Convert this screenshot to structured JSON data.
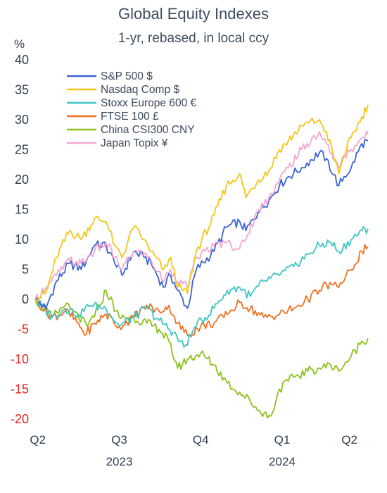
{
  "chart_data": {
    "type": "line",
    "title": "Global Equity Indexes",
    "subtitle": "1-yr, rebased, in local ccy",
    "ylabel": "%",
    "ylim": [
      -20,
      40
    ],
    "yticks": [
      40,
      35,
      30,
      25,
      20,
      15,
      10,
      5,
      0,
      -5,
      -10,
      -15,
      -20
    ],
    "grid": false,
    "legend_position": "top-left",
    "x_range": [
      "2023-05-12",
      "2024-05-22"
    ],
    "x_tick_labels": [
      {
        "label": "Q2",
        "date": "2023-05-15"
      },
      {
        "label": "Q3",
        "date": "2023-08-15"
      },
      {
        "label": "Q4",
        "date": "2023-11-15"
      },
      {
        "label": "Q1",
        "date": "2024-02-15"
      },
      {
        "label": "Q2",
        "date": "2024-05-01"
      }
    ],
    "x_year_labels": [
      {
        "label": "2023",
        "date": "2023-08-15"
      },
      {
        "label": "2024",
        "date": "2024-02-15"
      }
    ],
    "series": [
      {
        "name": "S&P 500 $",
        "color": "#3a63d6",
        "points": [
          [
            "2023-05-12",
            0
          ],
          [
            "2023-05-24",
            -1.5
          ],
          [
            "2023-06-05",
            3
          ],
          [
            "2023-06-20",
            6
          ],
          [
            "2023-07-03",
            5
          ],
          [
            "2023-07-18",
            9
          ],
          [
            "2023-07-31",
            9
          ],
          [
            "2023-08-10",
            6
          ],
          [
            "2023-08-18",
            4
          ],
          [
            "2023-08-31",
            8
          ],
          [
            "2023-09-12",
            7
          ],
          [
            "2023-09-20",
            6
          ],
          [
            "2023-10-04",
            2
          ],
          [
            "2023-10-12",
            4
          ],
          [
            "2023-10-20",
            1.5
          ],
          [
            "2023-10-31",
            -1.5
          ],
          [
            "2023-11-10",
            5
          ],
          [
            "2023-11-30",
            8
          ],
          [
            "2023-12-14",
            12
          ],
          [
            "2023-12-29",
            13
          ],
          [
            "2024-01-05",
            11.5
          ],
          [
            "2024-01-19",
            14.5
          ],
          [
            "2024-01-31",
            16.5
          ],
          [
            "2024-02-12",
            19
          ],
          [
            "2024-02-22",
            20.5
          ],
          [
            "2024-03-08",
            22
          ],
          [
            "2024-03-28",
            24.5
          ],
          [
            "2024-04-05",
            23.5
          ],
          [
            "2024-04-19",
            19
          ],
          [
            "2024-04-25",
            20.5
          ],
          [
            "2024-05-03",
            22
          ],
          [
            "2024-05-15",
            26
          ],
          [
            "2024-05-22",
            26.5
          ]
        ]
      },
      {
        "name": "Nasdaq Comp $",
        "color": "#f5c518",
        "points": [
          [
            "2023-05-12",
            0
          ],
          [
            "2023-05-24",
            1
          ],
          [
            "2023-06-05",
            7
          ],
          [
            "2023-06-20",
            11.5
          ],
          [
            "2023-07-03",
            10
          ],
          [
            "2023-07-18",
            13.5
          ],
          [
            "2023-07-31",
            13
          ],
          [
            "2023-08-10",
            9
          ],
          [
            "2023-08-18",
            7
          ],
          [
            "2023-08-31",
            12
          ],
          [
            "2023-09-12",
            10
          ],
          [
            "2023-09-20",
            8
          ],
          [
            "2023-10-04",
            5
          ],
          [
            "2023-10-12",
            7
          ],
          [
            "2023-10-20",
            2
          ],
          [
            "2023-10-31",
            1
          ],
          [
            "2023-11-10",
            8
          ],
          [
            "2023-11-30",
            14
          ],
          [
            "2023-12-14",
            19
          ],
          [
            "2023-12-29",
            21
          ],
          [
            "2024-01-05",
            17
          ],
          [
            "2024-01-19",
            20
          ],
          [
            "2024-01-31",
            21.5
          ],
          [
            "2024-02-12",
            25
          ],
          [
            "2024-02-22",
            26.5
          ],
          [
            "2024-03-08",
            29
          ],
          [
            "2024-03-28",
            30
          ],
          [
            "2024-04-05",
            28
          ],
          [
            "2024-04-19",
            21
          ],
          [
            "2024-04-25",
            24
          ],
          [
            "2024-05-03",
            27
          ],
          [
            "2024-05-15",
            30.5
          ],
          [
            "2024-05-22",
            32.5
          ]
        ]
      },
      {
        "name": "Stoxx Europe 600  €",
        "color": "#3ec6c2",
        "points": [
          [
            "2023-05-12",
            0
          ],
          [
            "2023-05-31",
            -3
          ],
          [
            "2023-06-15",
            -1.5
          ],
          [
            "2023-06-30",
            -2.5
          ],
          [
            "2023-07-14",
            -1
          ],
          [
            "2023-07-31",
            -1.5
          ],
          [
            "2023-08-15",
            -4.5
          ],
          [
            "2023-08-31",
            -3
          ],
          [
            "2023-09-15",
            -1.5
          ],
          [
            "2023-09-29",
            -3.5
          ],
          [
            "2023-10-15",
            -5.5
          ],
          [
            "2023-10-27",
            -8
          ],
          [
            "2023-11-10",
            -4.5
          ],
          [
            "2023-11-30",
            -1.5
          ],
          [
            "2023-12-15",
            1.5
          ],
          [
            "2023-12-29",
            2
          ],
          [
            "2024-01-10",
            0.5
          ],
          [
            "2024-01-25",
            3
          ],
          [
            "2024-02-12",
            4
          ],
          [
            "2024-02-28",
            5.5
          ],
          [
            "2024-03-15",
            7.5
          ],
          [
            "2024-03-28",
            9
          ],
          [
            "2024-04-10",
            9.5
          ],
          [
            "2024-04-19",
            8
          ],
          [
            "2024-05-03",
            10
          ],
          [
            "2024-05-15",
            11.5
          ],
          [
            "2024-05-22",
            11.8
          ]
        ]
      },
      {
        "name": "FTSE 100  £",
        "color": "#f07020",
        "points": [
          [
            "2023-05-12",
            0
          ],
          [
            "2023-05-31",
            -3
          ],
          [
            "2023-06-15",
            -2
          ],
          [
            "2023-06-30",
            -4
          ],
          [
            "2023-07-07",
            -6
          ],
          [
            "2023-07-18",
            -4
          ],
          [
            "2023-07-31",
            -2.5
          ],
          [
            "2023-08-15",
            -4.5
          ],
          [
            "2023-08-31",
            -3
          ],
          [
            "2023-09-15",
            -1
          ],
          [
            "2023-09-29",
            -2
          ],
          [
            "2023-10-10",
            -1
          ],
          [
            "2023-10-20",
            -4
          ],
          [
            "2023-10-31",
            -6
          ],
          [
            "2023-11-15",
            -4.5
          ],
          [
            "2023-11-30",
            -4
          ],
          [
            "2023-12-15",
            -2.5
          ],
          [
            "2023-12-29",
            -0.5
          ],
          [
            "2024-01-10",
            -1.5
          ],
          [
            "2024-01-25",
            -3
          ],
          [
            "2024-02-12",
            -2.5
          ],
          [
            "2024-02-28",
            -1.5
          ],
          [
            "2024-03-15",
            0
          ],
          [
            "2024-03-28",
            1.5
          ],
          [
            "2024-04-05",
            2.5
          ],
          [
            "2024-04-19",
            2
          ],
          [
            "2024-05-03",
            5
          ],
          [
            "2024-05-15",
            8
          ],
          [
            "2024-05-22",
            8.8
          ]
        ]
      },
      {
        "name": "China CSI300  CNY",
        "color": "#8cc21c",
        "points": [
          [
            "2023-05-12",
            0
          ],
          [
            "2023-05-31",
            -3
          ],
          [
            "2023-06-15",
            -1
          ],
          [
            "2023-06-30",
            -3
          ],
          [
            "2023-07-10",
            -4.5
          ],
          [
            "2023-07-24",
            -1
          ],
          [
            "2023-07-31",
            1.5
          ],
          [
            "2023-08-15",
            -3
          ],
          [
            "2023-08-31",
            -3
          ],
          [
            "2023-09-15",
            -4
          ],
          [
            "2023-09-29",
            -5
          ],
          [
            "2023-10-10",
            -7
          ],
          [
            "2023-10-20",
            -11.5
          ],
          [
            "2023-10-31",
            -10
          ],
          [
            "2023-11-15",
            -9
          ],
          [
            "2023-11-30",
            -11
          ],
          [
            "2023-12-15",
            -14
          ],
          [
            "2023-12-29",
            -15.5
          ],
          [
            "2024-01-10",
            -17
          ],
          [
            "2024-01-22",
            -19
          ],
          [
            "2024-02-02",
            -19.5
          ],
          [
            "2024-02-12",
            -15
          ],
          [
            "2024-02-28",
            -13
          ],
          [
            "2024-03-15",
            -12
          ],
          [
            "2024-03-28",
            -11.5
          ],
          [
            "2024-04-10",
            -11
          ],
          [
            "2024-04-19",
            -12
          ],
          [
            "2024-05-03",
            -9.5
          ],
          [
            "2024-05-15",
            -7
          ],
          [
            "2024-05-22",
            -6.5
          ]
        ]
      },
      {
        "name": "Japan Topix  ¥",
        "color": "#f2a7cf",
        "points": [
          [
            "2023-05-12",
            0
          ],
          [
            "2023-05-24",
            2
          ],
          [
            "2023-06-05",
            4
          ],
          [
            "2023-06-20",
            6.5
          ],
          [
            "2023-07-03",
            6
          ],
          [
            "2023-07-18",
            8
          ],
          [
            "2023-07-31",
            9.5
          ],
          [
            "2023-08-10",
            7
          ],
          [
            "2023-08-18",
            5
          ],
          [
            "2023-08-31",
            8
          ],
          [
            "2023-09-12",
            7.5
          ],
          [
            "2023-09-20",
            6.5
          ],
          [
            "2023-10-04",
            3
          ],
          [
            "2023-10-12",
            5
          ],
          [
            "2023-10-20",
            3
          ],
          [
            "2023-10-31",
            2
          ],
          [
            "2023-11-10",
            7
          ],
          [
            "2023-11-30",
            9
          ],
          [
            "2023-12-14",
            9.5
          ],
          [
            "2023-12-29",
            8.5
          ],
          [
            "2024-01-05",
            10
          ],
          [
            "2024-01-19",
            15
          ],
          [
            "2024-01-31",
            17
          ],
          [
            "2024-02-12",
            20
          ],
          [
            "2024-02-22",
            22
          ],
          [
            "2024-03-08",
            25
          ],
          [
            "2024-03-28",
            28
          ],
          [
            "2024-04-05",
            26
          ],
          [
            "2024-04-19",
            22
          ],
          [
            "2024-04-25",
            24
          ],
          [
            "2024-05-03",
            25
          ],
          [
            "2024-05-15",
            27
          ],
          [
            "2024-05-22",
            27.5
          ]
        ]
      }
    ]
  }
}
